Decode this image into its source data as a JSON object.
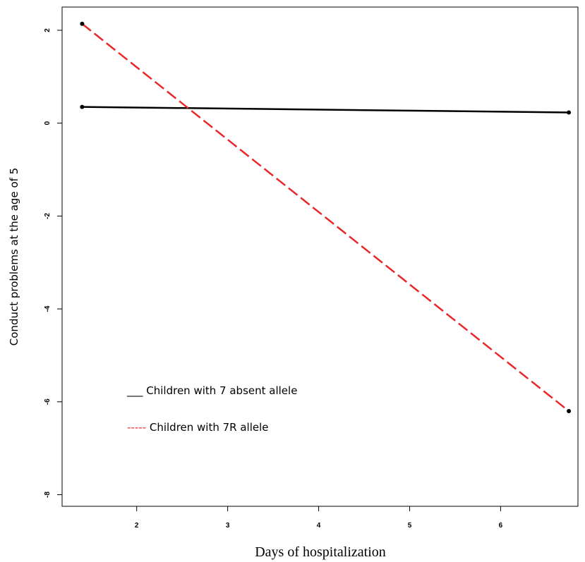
{
  "chart_data": {
    "type": "line",
    "xlabel": "Days of hospitalization",
    "ylabel": "Conduct problems  at the age of 5",
    "xlim": [
      1.18,
      6.85
    ],
    "ylim": [
      -8.25,
      2.5
    ],
    "xticks": [
      2,
      3,
      4,
      5,
      6
    ],
    "yticks": [
      2,
      0,
      -2,
      -4,
      -6,
      -8
    ],
    "grid": false,
    "legend_position": "lower-left",
    "series": [
      {
        "name": "Children with 7 absent allele",
        "legend_prefix": "___",
        "color": "#000000",
        "dash": "solid",
        "x": [
          1.4,
          6.75
        ],
        "y": [
          0.35,
          0.23
        ]
      },
      {
        "name": "Children with 7R allele",
        "legend_prefix": "-----",
        "color": "#e8282b",
        "dash": "dashed",
        "x": [
          1.4,
          6.75
        ],
        "y": [
          2.14,
          -6.2
        ]
      }
    ]
  }
}
